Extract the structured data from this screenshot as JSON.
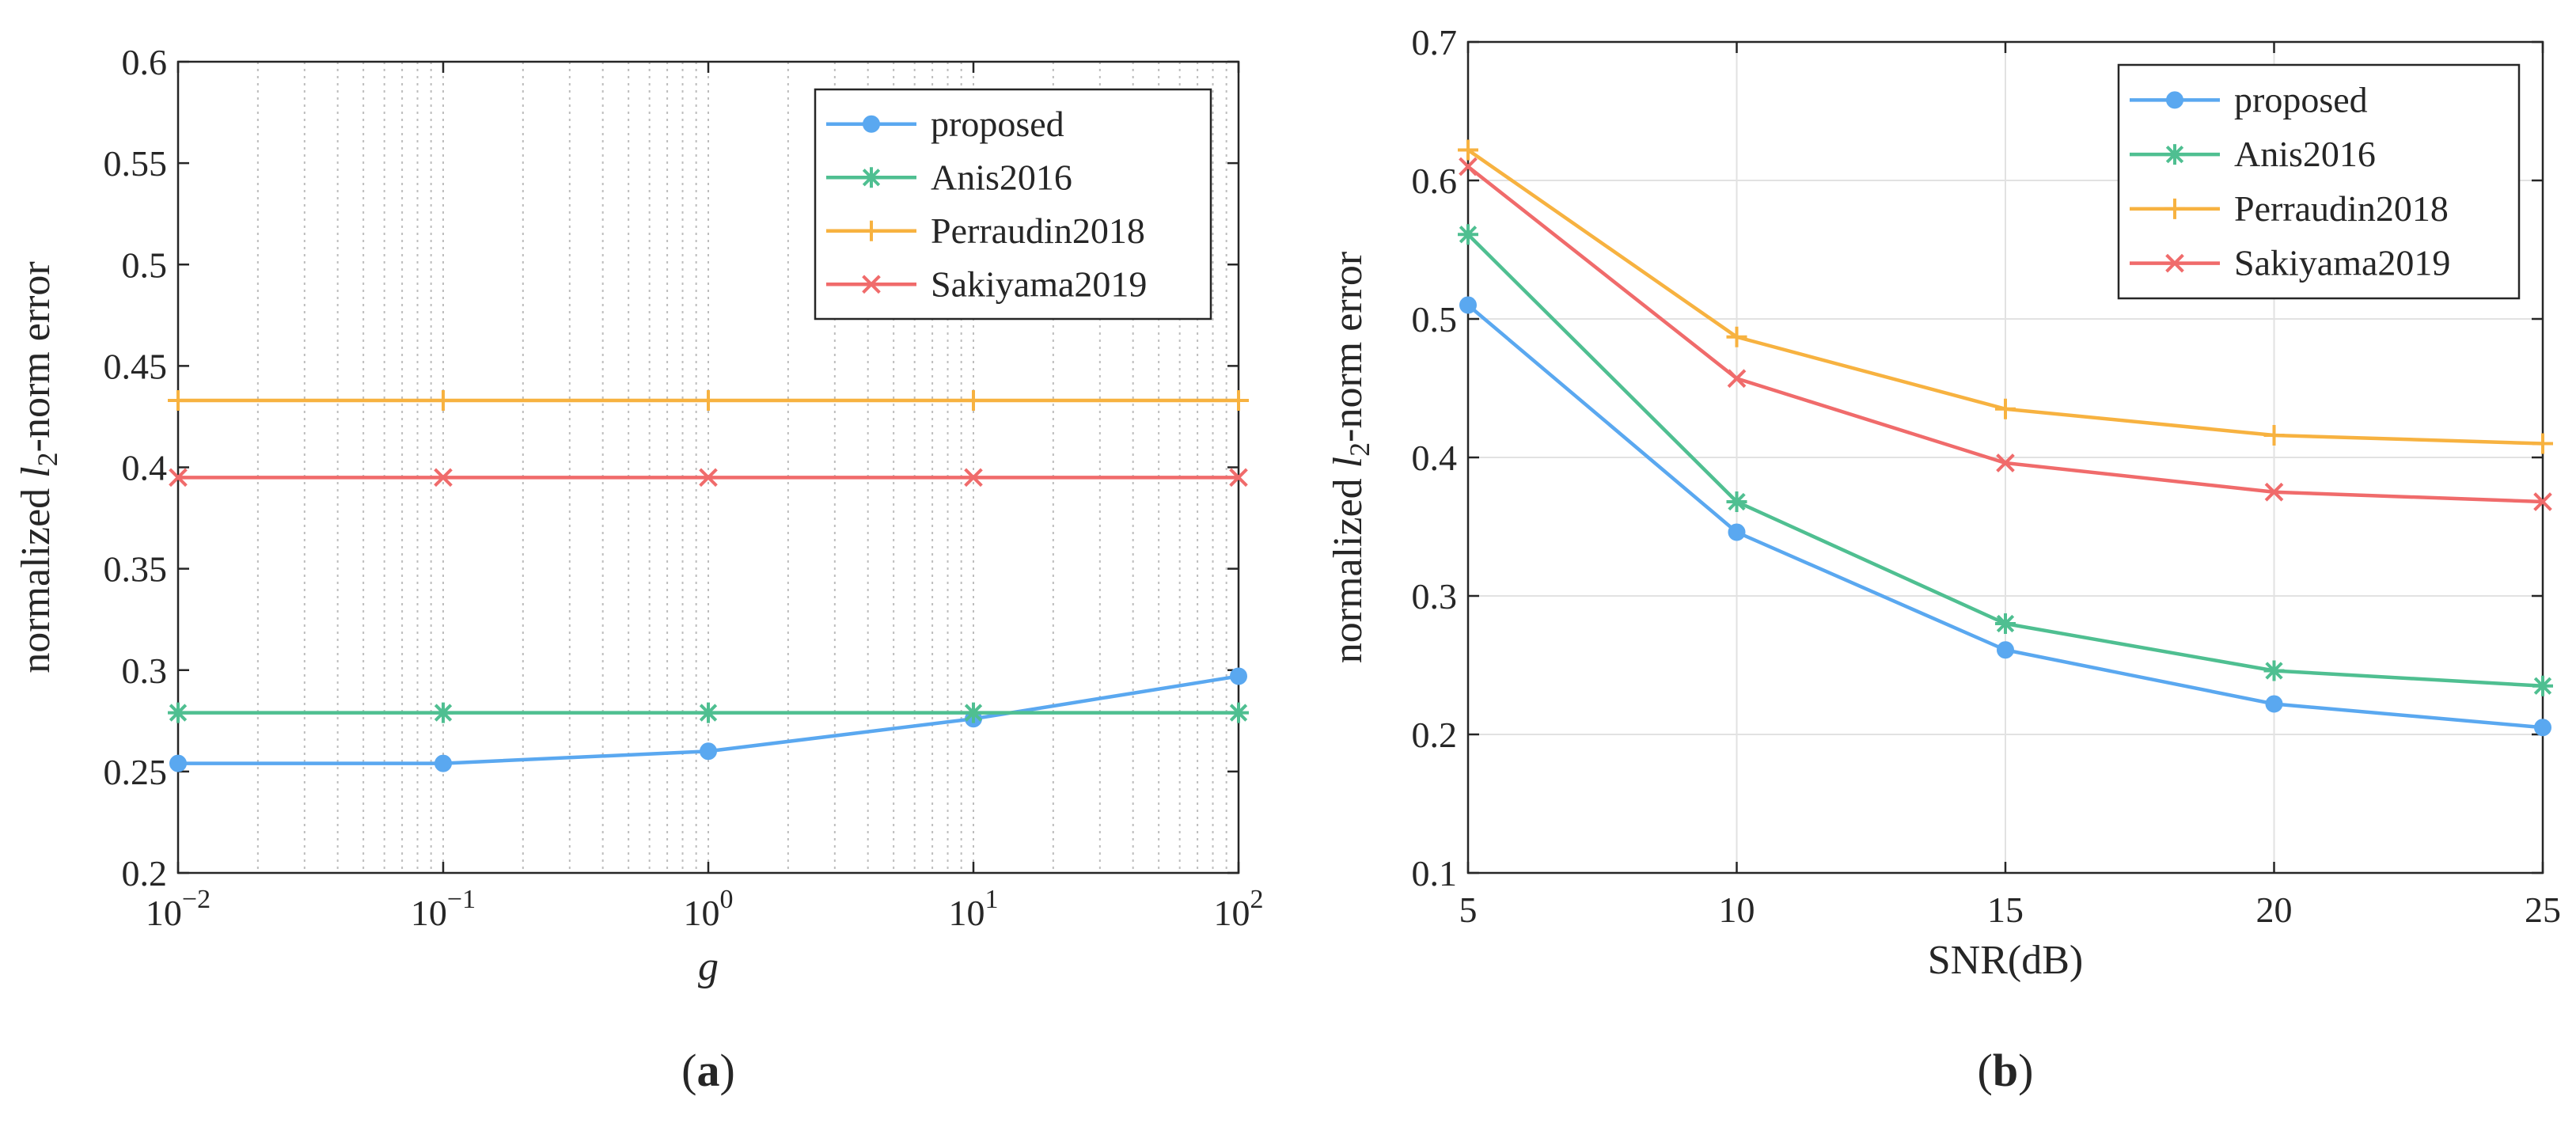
{
  "chart_data": [
    {
      "type": "line",
      "panel_label": "a",
      "xlabel": "g",
      "ylabel_prefix": "normalized ",
      "ylabel_var": "l",
      "ylabel_sub": "2",
      "ylabel_suffix": "-norm error",
      "x_scale": "log",
      "x": [
        0.01,
        0.1,
        1,
        10,
        100
      ],
      "x_tick_labels": [
        {
          "base": "10",
          "exp": "−2"
        },
        {
          "base": "10",
          "exp": "−1"
        },
        {
          "base": "10",
          "exp": "0"
        },
        {
          "base": "10",
          "exp": "1"
        },
        {
          "base": "10",
          "exp": "2"
        }
      ],
      "xlim": [
        0.01,
        100
      ],
      "ylim": [
        0.2,
        0.6
      ],
      "y_ticks": [
        "0.2",
        "0.25",
        "0.3",
        "0.35",
        "0.4",
        "0.45",
        "0.5",
        "0.55",
        "0.6"
      ],
      "grid": "minor-x",
      "legend_position": "top-right",
      "series": [
        {
          "name": "proposed",
          "values": [
            0.254,
            0.254,
            0.26,
            0.276,
            0.297
          ],
          "color": "#5aa8f0",
          "marker": "circle"
        },
        {
          "name": "Anis2016",
          "values": [
            0.279,
            0.279,
            0.279,
            0.279,
            0.279
          ],
          "color": "#4fbf91",
          "marker": "asterisk"
        },
        {
          "name": "Perraudin2018",
          "values": [
            0.433,
            0.433,
            0.433,
            0.433,
            0.433
          ],
          "color": "#f7b240",
          "marker": "plus"
        },
        {
          "name": "Sakiyama2019",
          "values": [
            0.395,
            0.395,
            0.395,
            0.395,
            0.395
          ],
          "color": "#f06b6b",
          "marker": "cross"
        }
      ]
    },
    {
      "type": "line",
      "panel_label": "b",
      "xlabel": "SNR(dB)",
      "ylabel_prefix": "normalized ",
      "ylabel_var": "l",
      "ylabel_sub": "2",
      "ylabel_suffix": "-norm error",
      "x_scale": "linear",
      "x": [
        5,
        10,
        15,
        20,
        25
      ],
      "x_ticks": [
        "5",
        "10",
        "15",
        "20",
        "25"
      ],
      "xlim": [
        5,
        25
      ],
      "ylim": [
        0.1,
        0.7
      ],
      "y_ticks": [
        "0.1",
        "0.2",
        "0.3",
        "0.4",
        "0.5",
        "0.6",
        "0.7"
      ],
      "grid": "major",
      "legend_position": "top-right",
      "series": [
        {
          "name": "proposed",
          "values": [
            0.51,
            0.346,
            0.261,
            0.222,
            0.205
          ],
          "color": "#5aa8f0",
          "marker": "circle"
        },
        {
          "name": "Anis2016",
          "values": [
            0.561,
            0.368,
            0.28,
            0.246,
            0.235
          ],
          "color": "#4fbf91",
          "marker": "asterisk"
        },
        {
          "name": "Perraudin2018",
          "values": [
            0.622,
            0.487,
            0.435,
            0.416,
            0.41
          ],
          "color": "#f7b240",
          "marker": "plus"
        },
        {
          "name": "Sakiyama2019",
          "values": [
            0.61,
            0.457,
            0.396,
            0.375,
            0.368
          ],
          "color": "#f06b6b",
          "marker": "cross"
        }
      ]
    }
  ]
}
